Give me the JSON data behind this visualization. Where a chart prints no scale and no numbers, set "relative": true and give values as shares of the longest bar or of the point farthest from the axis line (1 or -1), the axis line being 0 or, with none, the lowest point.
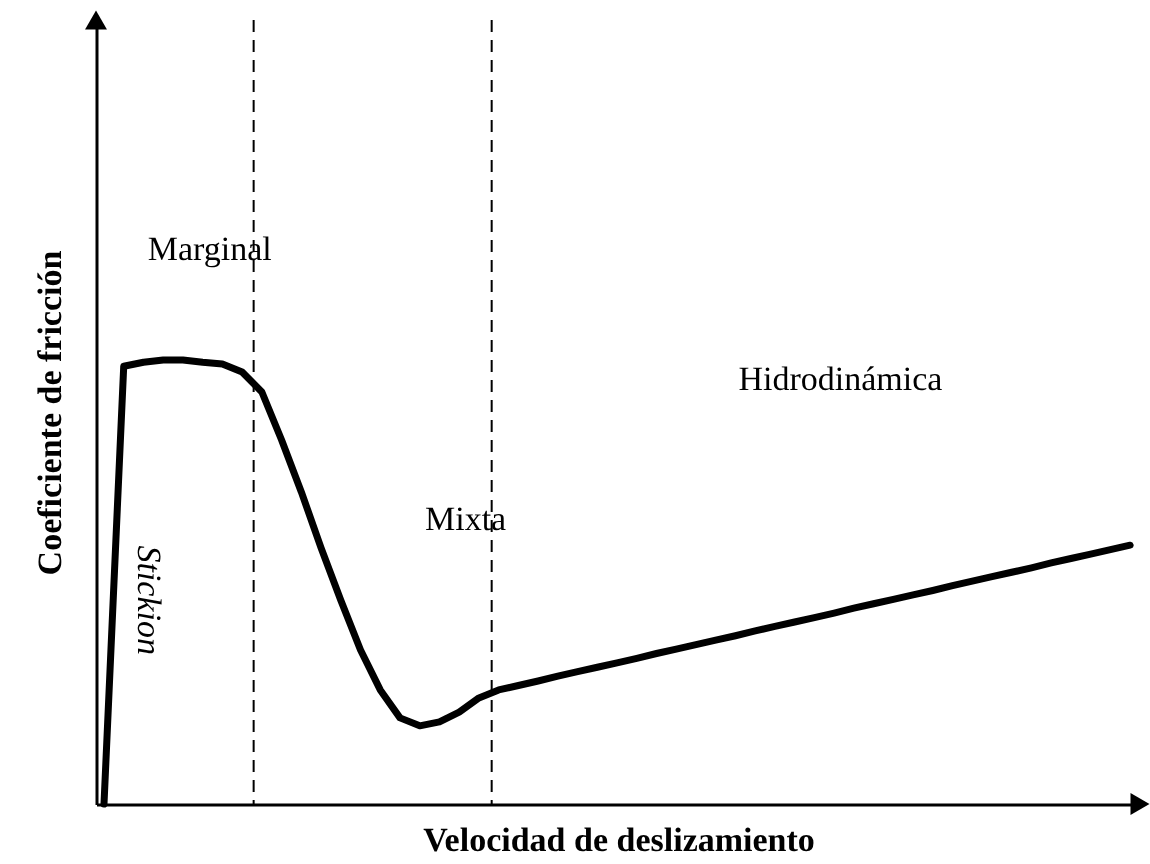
{
  "chart_data": {
    "type": "line",
    "relative": true,
    "xlabel": "Velocidad de deslizamiento",
    "ylabel": "Coeficiente de fricción",
    "categories": [
      null,
      null,
      null,
      null,
      null,
      null,
      null,
      null,
      null,
      null,
      null,
      null,
      null,
      null,
      null,
      null,
      null,
      null,
      null,
      null,
      null,
      null,
      null,
      null,
      null,
      null,
      null,
      null,
      null,
      null,
      null,
      null,
      null,
      null,
      null,
      null,
      null,
      null,
      null,
      null,
      null,
      null,
      null,
      null,
      null,
      null,
      null,
      null,
      null,
      null,
      null,
      null,
      null
    ],
    "series": [
      {
        "color": "#000000",
        "values": [
          0,
          0.986,
          0.995,
          1,
          1,
          0.995,
          0.991,
          0.973,
          0.928,
          0.82,
          0.703,
          0.577,
          0.459,
          0.347,
          0.257,
          0.194,
          0.176,
          0.185,
          0.207,
          0.239,
          0.257,
          0.267,
          0.277,
          0.288,
          0.298,
          0.308,
          0.318,
          0.328,
          0.339,
          0.349,
          0.359,
          0.369,
          0.379,
          0.39,
          0.4,
          0.41,
          0.42,
          0.43,
          0.441,
          0.451,
          0.461,
          0.471,
          0.481,
          0.492,
          0.502,
          0.512,
          0.522,
          0.532,
          0.543,
          0.553,
          0.563,
          0.573,
          0.583
        ]
      }
    ],
    "ref_lines": [
      {
        "axis": "x",
        "color": "#000000",
        "line_style": "dashed"
      },
      {
        "axis": "x",
        "color": "#000000",
        "line_style": "dashed"
      }
    ],
    "annotations": [
      "Marginal",
      "Mixta",
      "Hidrodinámica",
      "Stickion"
    ],
    "tick_labels": false,
    "marker": "none",
    "line_style": "solid"
  }
}
